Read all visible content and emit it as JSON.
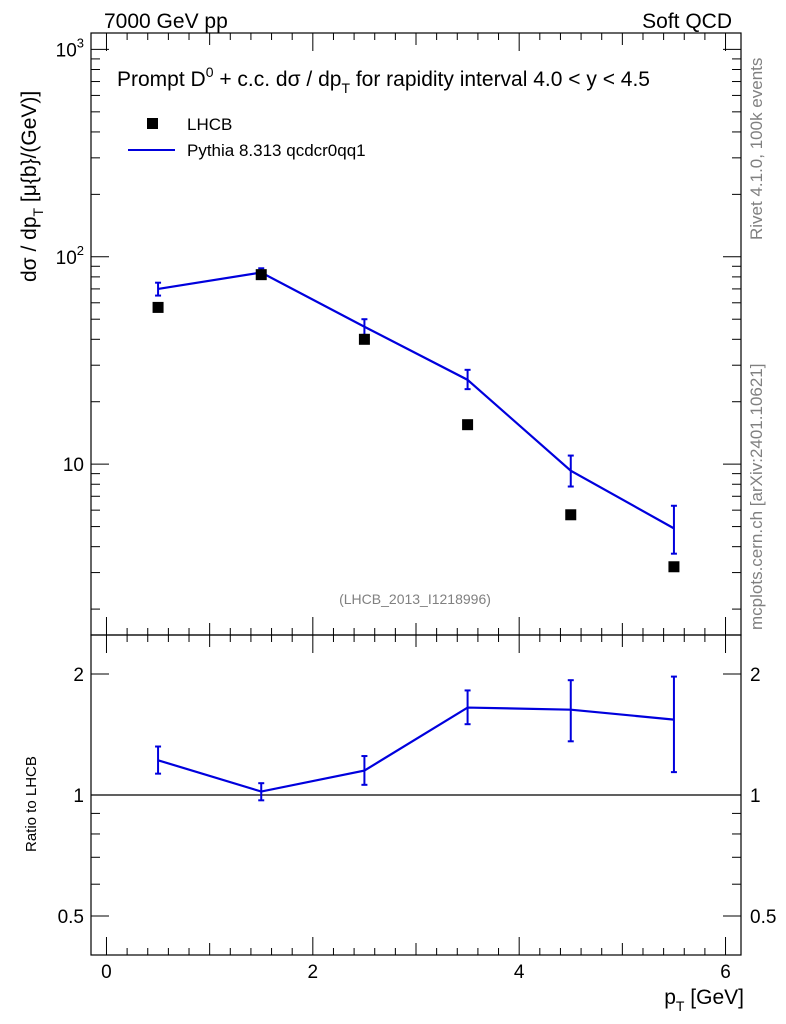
{
  "header": {
    "left": "7000 GeV pp",
    "right": "Soft QCD"
  },
  "side": {
    "top": "Rivet 4.1.0,  100k events",
    "bottom": "mcplots.cern.ch [arXiv:2401.10621]"
  },
  "watermark": "(LHCB_2013_I1218996)",
  "colors": {
    "mc": "#0000dd",
    "data": "#000000",
    "label_grey": "#808080"
  },
  "chart_data": [
    {
      "type": "line",
      "title": "Prompt D0 + c.c.  dσ / dpT for rapidity interval 4.0 < y < 4.5",
      "title_parts": {
        "a": "Prompt D",
        "sup": "0",
        "b": " + c.c.  dσ / dp",
        "sub": "T",
        "c": " for rapidity interval 4.0 < y < 4.5"
      },
      "ylabel_parts": {
        "a": "dσ / dp",
        "sub": "T",
        "b": " [μ{b}/(GeV)]"
      },
      "yscale": "log",
      "ylim": [
        1.5,
        1200
      ],
      "xlim": [
        -0.15,
        6.15
      ],
      "y_tick_labels": [
        {
          "value": 10,
          "base": "10",
          "exp": ""
        },
        {
          "value": 100,
          "base": "10",
          "exp": "2"
        },
        {
          "value": 1000,
          "base": "10",
          "exp": "3"
        }
      ],
      "legend": {
        "position": "top-left",
        "data_label": "LHCB",
        "mc_label": "Pythia 8.313 qcdcr0qq1"
      },
      "series": [
        {
          "name": "LHCB",
          "x": [
            0.5,
            1.5,
            2.5,
            3.5,
            4.5,
            5.5
          ],
          "y": [
            57,
            82,
            40,
            15.5,
            5.7,
            3.2
          ]
        },
        {
          "name": "Pythia 8.313 qcdcr0qq1",
          "x": [
            0.5,
            1.5,
            2.5,
            3.5,
            4.5,
            5.5
          ],
          "y": [
            70,
            84,
            46,
            25.5,
            9.3,
            4.9
          ],
          "yerr_low": [
            65,
            80,
            42,
            23,
            7.8,
            3.7
          ],
          "yerr_high": [
            75,
            88,
            50,
            28.5,
            11,
            6.3
          ]
        }
      ]
    },
    {
      "type": "line",
      "ylabel": "Ratio to LHCB",
      "yscale": "log",
      "ylim": [
        0.4,
        2.5
      ],
      "xlim": [
        -0.15,
        6.15
      ],
      "reference_line": 1,
      "y_tick_labels": [
        "0.5",
        "1",
        "2"
      ],
      "y_tick_values": [
        0.5,
        1,
        2
      ],
      "x_tick_labels": [
        "0",
        "2",
        "4",
        "6"
      ],
      "x_tick_values": [
        0,
        2,
        4,
        6
      ],
      "xlabel_parts": {
        "a": "p",
        "sub": "T",
        "b": " [GeV]"
      },
      "series": [
        {
          "name": "Pythia 8.313 qcdcr0qq1 / LHCB",
          "x": [
            0.5,
            1.5,
            2.5,
            3.5,
            4.5,
            5.5
          ],
          "y": [
            1.22,
            1.02,
            1.15,
            1.65,
            1.63,
            1.54
          ],
          "yerr_low": [
            1.13,
            0.97,
            1.06,
            1.5,
            1.36,
            1.14
          ],
          "yerr_high": [
            1.32,
            1.07,
            1.25,
            1.82,
            1.93,
            1.97
          ]
        }
      ]
    }
  ]
}
